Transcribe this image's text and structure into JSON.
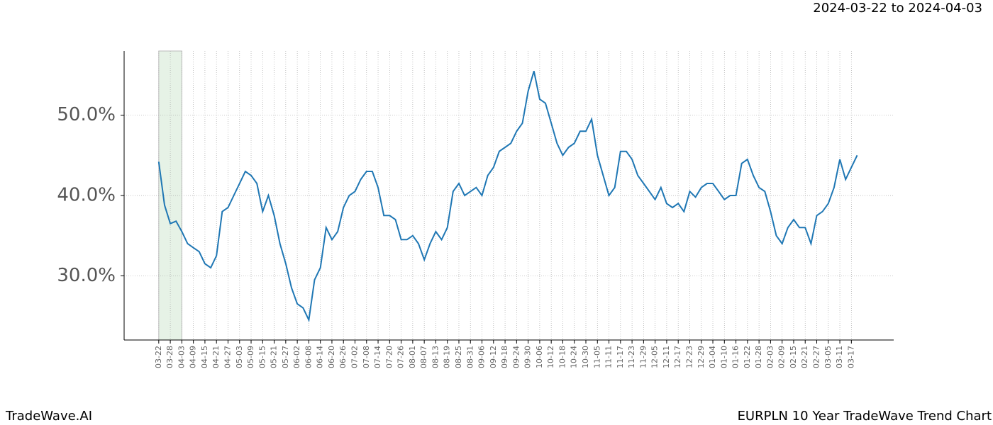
{
  "chart_data": {
    "type": "line",
    "title": "EURPLN 10 Year TradeWave Trend Chart",
    "subtitle": "2024-03-22 to 2024-04-03",
    "brand": "TradeWave.AI",
    "color": "#1f77b4",
    "shade_x": [
      0,
      12
    ],
    "xlim": [
      -18,
      382
    ],
    "ylim": [
      22,
      58
    ],
    "grid": true,
    "yticks": [
      {
        "value": 30,
        "label": "30.0%"
      },
      {
        "value": 40,
        "label": "40.0%"
      },
      {
        "value": 50,
        "label": "50.0%"
      }
    ],
    "xticks": [
      {
        "value": 0,
        "label": "03-22"
      },
      {
        "value": 6,
        "label": "03-28"
      },
      {
        "value": 12,
        "label": "04-03"
      },
      {
        "value": 18,
        "label": "04-09"
      },
      {
        "value": 24,
        "label": "04-15"
      },
      {
        "value": 30,
        "label": "04-21"
      },
      {
        "value": 36,
        "label": "04-27"
      },
      {
        "value": 42,
        "label": "05-03"
      },
      {
        "value": 48,
        "label": "05-09"
      },
      {
        "value": 54,
        "label": "05-15"
      },
      {
        "value": 60,
        "label": "05-21"
      },
      {
        "value": 66,
        "label": "05-27"
      },
      {
        "value": 72,
        "label": "06-02"
      },
      {
        "value": 78,
        "label": "06-08"
      },
      {
        "value": 84,
        "label": "06-14"
      },
      {
        "value": 90,
        "label": "06-20"
      },
      {
        "value": 96,
        "label": "06-26"
      },
      {
        "value": 102,
        "label": "07-02"
      },
      {
        "value": 108,
        "label": "07-08"
      },
      {
        "value": 114,
        "label": "07-14"
      },
      {
        "value": 120,
        "label": "07-20"
      },
      {
        "value": 126,
        "label": "07-26"
      },
      {
        "value": 132,
        "label": "08-01"
      },
      {
        "value": 138,
        "label": "08-07"
      },
      {
        "value": 144,
        "label": "08-13"
      },
      {
        "value": 150,
        "label": "08-19"
      },
      {
        "value": 156,
        "label": "08-25"
      },
      {
        "value": 162,
        "label": "08-31"
      },
      {
        "value": 168,
        "label": "09-06"
      },
      {
        "value": 174,
        "label": "09-12"
      },
      {
        "value": 180,
        "label": "09-18"
      },
      {
        "value": 186,
        "label": "09-24"
      },
      {
        "value": 192,
        "label": "09-30"
      },
      {
        "value": 198,
        "label": "10-06"
      },
      {
        "value": 204,
        "label": "10-12"
      },
      {
        "value": 210,
        "label": "10-18"
      },
      {
        "value": 216,
        "label": "10-24"
      },
      {
        "value": 222,
        "label": "10-30"
      },
      {
        "value": 228,
        "label": "11-05"
      },
      {
        "value": 234,
        "label": "11-11"
      },
      {
        "value": 240,
        "label": "11-17"
      },
      {
        "value": 246,
        "label": "11-23"
      },
      {
        "value": 252,
        "label": "11-29"
      },
      {
        "value": 258,
        "label": "12-05"
      },
      {
        "value": 264,
        "label": "12-11"
      },
      {
        "value": 270,
        "label": "12-17"
      },
      {
        "value": 276,
        "label": "12-23"
      },
      {
        "value": 282,
        "label": "12-29"
      },
      {
        "value": 288,
        "label": "01-04"
      },
      {
        "value": 294,
        "label": "01-10"
      },
      {
        "value": 300,
        "label": "01-16"
      },
      {
        "value": 306,
        "label": "01-22"
      },
      {
        "value": 312,
        "label": "01-28"
      },
      {
        "value": 318,
        "label": "02-03"
      },
      {
        "value": 324,
        "label": "02-09"
      },
      {
        "value": 330,
        "label": "02-15"
      },
      {
        "value": 336,
        "label": "02-21"
      },
      {
        "value": 342,
        "label": "02-27"
      },
      {
        "value": 348,
        "label": "03-05"
      },
      {
        "value": 354,
        "label": "03-11"
      },
      {
        "value": 360,
        "label": "03-17"
      }
    ],
    "x": [
      0,
      3,
      6,
      9,
      12,
      15,
      18,
      21,
      24,
      27,
      30,
      33,
      36,
      39,
      42,
      45,
      48,
      51,
      54,
      57,
      60,
      63,
      66,
      69,
      72,
      75,
      78,
      81,
      84,
      87,
      90,
      93,
      96,
      99,
      102,
      105,
      108,
      111,
      114,
      117,
      120,
      123,
      126,
      129,
      132,
      135,
      138,
      141,
      144,
      147,
      150,
      153,
      156,
      159,
      162,
      165,
      168,
      171,
      174,
      177,
      180,
      183,
      186,
      189,
      192,
      195,
      198,
      201,
      204,
      207,
      210,
      213,
      216,
      219,
      222,
      225,
      228,
      231,
      234,
      237,
      240,
      243,
      246,
      249,
      252,
      255,
      258,
      261,
      264,
      267,
      270,
      273,
      276,
      279,
      282,
      285,
      288,
      291,
      294,
      297,
      300,
      303,
      306,
      309,
      312,
      315,
      318,
      321,
      324,
      327,
      330,
      333,
      336,
      339,
      342,
      345,
      348,
      351,
      354,
      357,
      360,
      363
    ],
    "values": [
      44.2,
      38.8,
      36.5,
      36.8,
      35.5,
      34,
      33.5,
      33,
      31.5,
      31,
      32.5,
      38,
      38.5,
      40,
      41.5,
      43,
      42.5,
      41.5,
      38,
      40,
      37.5,
      34,
      31.5,
      28.5,
      26.5,
      26,
      24.5,
      29.5,
      31,
      36,
      34.5,
      35.5,
      38.5,
      40,
      40.5,
      42,
      43,
      43,
      41,
      37.5,
      37.5,
      37,
      34.5,
      34.5,
      35,
      34,
      32,
      34,
      35.5,
      34.5,
      36,
      40.5,
      41.5,
      40,
      40.5,
      41,
      40,
      42.5,
      43.5,
      45.5,
      46,
      46.5,
      48,
      49,
      53,
      55.5,
      52,
      51.5,
      49,
      46.5,
      45,
      46,
      46.5,
      48,
      48,
      49.5,
      45,
      42.5,
      40,
      41,
      45.5,
      45.5,
      44.5,
      42.5,
      41.5,
      40.5,
      39.5,
      41,
      39,
      38.5,
      39,
      38,
      40.5,
      39.8,
      41,
      41.5,
      41.5,
      40.5,
      39.5,
      40,
      40,
      44,
      44.5,
      42.5,
      41,
      40.5,
      38,
      35,
      34,
      36,
      37,
      36,
      36,
      34,
      37.5,
      38,
      39,
      41,
      44.5,
      42,
      43.5,
      45
    ]
  }
}
